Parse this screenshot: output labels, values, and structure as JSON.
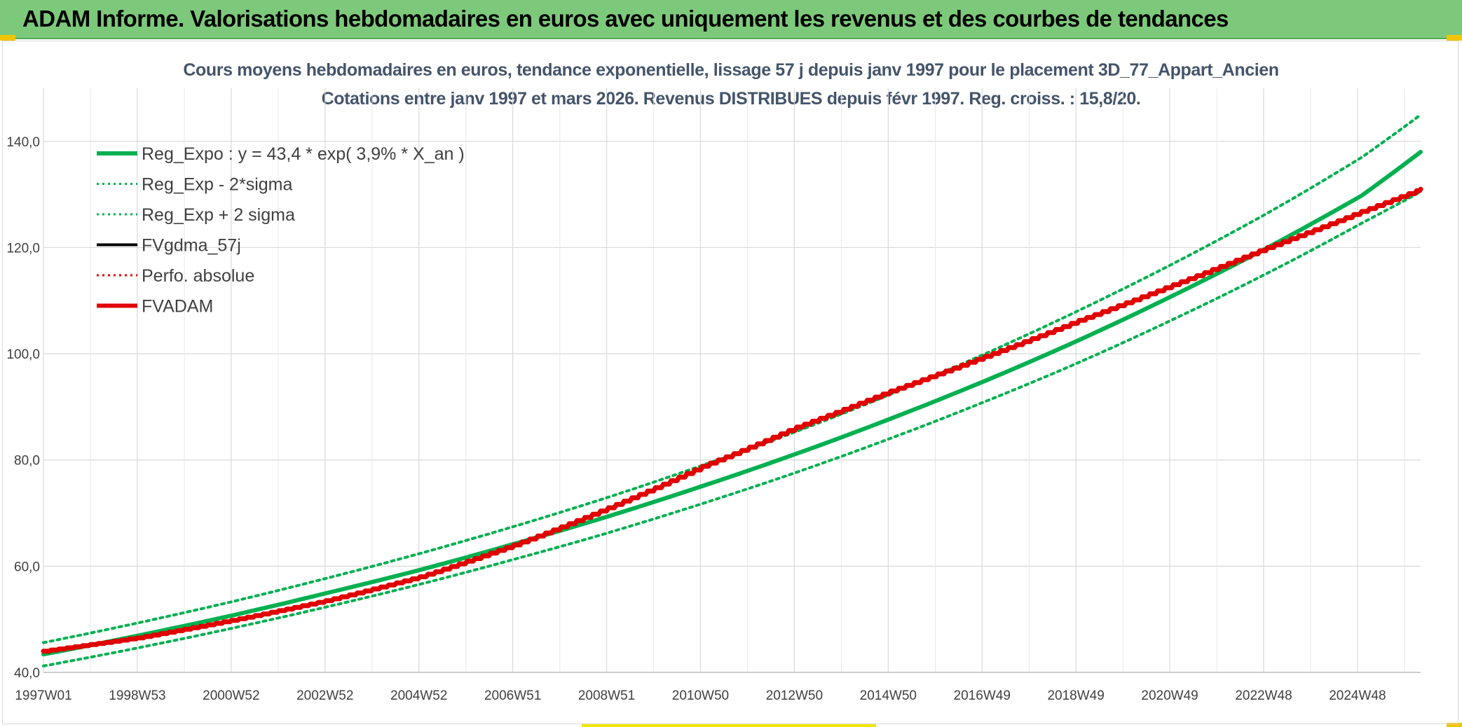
{
  "header": {
    "title": "ADAM Informe. Valorisations hebdomadaires en euros avec uniquement les revenus et des courbes de tendances"
  },
  "colors": {
    "header_bg": "#7dc97b",
    "reg_expo": "#00b050",
    "fvadam": "#e00000",
    "fvgdma": "#000000",
    "grid": "#d9d9d9",
    "title_text": "#44546a"
  },
  "chart_data": {
    "type": "line",
    "title": "Cours moyens hebdomadaires en euros, tendance exponentielle, lissage 57 j depuis janv 1997 pour le placement 3D_77_Appart_Ancien",
    "subtitle": "Cotations entre janv 1997 et mars 2026. Revenus DISTRIBUES depuis févr 1997. Reg. croiss. : 15,8/20.",
    "xlabel": "",
    "ylabel": "",
    "x_tick_labels": [
      "1997W01",
      "1998W53",
      "2000W52",
      "2002W52",
      "2004W52",
      "2006W51",
      "2008W51",
      "2010W50",
      "2012W50",
      "2014W50",
      "2016W49",
      "2018W49",
      "2020W49",
      "2022W48",
      "2024W48"
    ],
    "x_range_years": [
      1997.0,
      2026.25
    ],
    "ylim": [
      40,
      150
    ],
    "y_ticks": [
      40,
      60,
      80,
      100,
      120,
      140
    ],
    "y_tick_labels": [
      "40,0",
      "60,0",
      "80,0",
      "100,0",
      "120,0",
      "140,0"
    ],
    "grid": true,
    "legend_position": "top-left",
    "series": [
      {
        "name": "Reg_Expo : y = 43,4 * exp( 3,9% *  X_an )",
        "style": "solid-thick",
        "color": "#00b050",
        "x": [
          1997.0,
          1999.0,
          2001.0,
          2003.0,
          2005.0,
          2007.0,
          2009.0,
          2011.0,
          2013.0,
          2015.0,
          2017.0,
          2019.0,
          2021.0,
          2023.0,
          2025.0,
          2026.25
        ],
        "values": [
          43.4,
          46.9,
          50.7,
          54.9,
          59.3,
          64.2,
          69.4,
          75.1,
          81.2,
          87.8,
          94.9,
          102.6,
          111.0,
          120.0,
          129.8,
          138.0
        ]
      },
      {
        "name": "Reg_Exp - 2*sigma",
        "style": "dotted",
        "color": "#00b050",
        "x": [
          1997.0,
          1999.0,
          2001.0,
          2003.0,
          2005.0,
          2007.0,
          2009.0,
          2011.0,
          2013.0,
          2015.0,
          2017.0,
          2019.0,
          2021.0,
          2023.0,
          2025.0,
          2026.25
        ],
        "values": [
          41.2,
          44.6,
          48.3,
          52.3,
          56.6,
          61.3,
          66.3,
          71.8,
          77.7,
          84.1,
          91.0,
          98.4,
          106.5,
          115.2,
          124.6,
          130.5
        ]
      },
      {
        "name": "Reg_Exp + 2 sigma",
        "style": "dotted",
        "color": "#00b050",
        "x": [
          1997.0,
          1999.0,
          2001.0,
          2003.0,
          2005.0,
          2007.0,
          2009.0,
          2011.0,
          2013.0,
          2015.0,
          2017.0,
          2019.0,
          2021.0,
          2023.0,
          2025.0,
          2026.25
        ],
        "values": [
          45.6,
          49.3,
          53.3,
          57.7,
          62.4,
          67.5,
          73.0,
          79.0,
          85.4,
          92.4,
          100.0,
          108.2,
          117.0,
          126.5,
          137.0,
          145.0
        ]
      },
      {
        "name": "FVgdma_57j",
        "style": "solid",
        "color": "#000000",
        "x": [],
        "values": []
      },
      {
        "name": "Perfo. absolue",
        "style": "dotted",
        "color": "#e00000",
        "x": [],
        "values": []
      },
      {
        "name": "FVADAM",
        "style": "solid-thick-stepped",
        "color": "#e00000",
        "x": [
          1997.0,
          1999.0,
          2001.0,
          2003.0,
          2005.0,
          2007.0,
          2009.0,
          2011.0,
          2013.0,
          2015.0,
          2017.0,
          2019.0,
          2021.0,
          2023.0,
          2025.0,
          2026.25
        ],
        "values": [
          44.0,
          46.5,
          49.8,
          53.5,
          58.0,
          64.0,
          71.0,
          78.8,
          86.2,
          93.0,
          99.5,
          106.3,
          113.0,
          120.0,
          126.8,
          131.0
        ]
      }
    ]
  }
}
